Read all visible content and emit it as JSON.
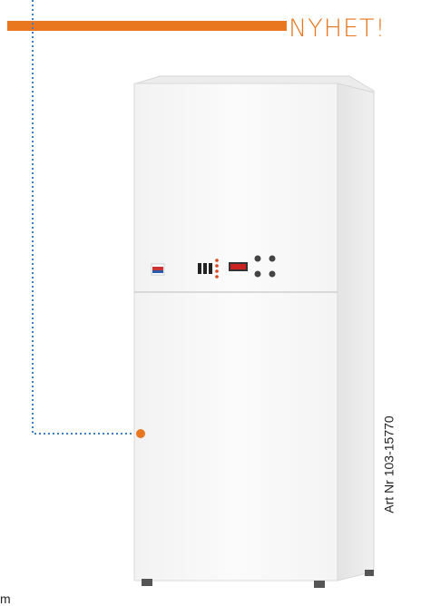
{
  "badge": "NYHET!",
  "article_number": "Art Nr 103-15770",
  "caption_fragment": "m"
}
